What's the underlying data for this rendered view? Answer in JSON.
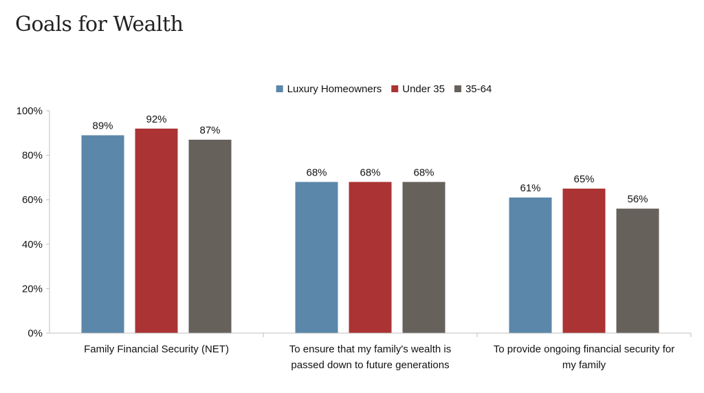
{
  "title": "Goals for Wealth",
  "chart_data": {
    "type": "bar",
    "title": "Goals for Wealth",
    "xlabel": "",
    "ylabel": "",
    "ylim": [
      0,
      100
    ],
    "y_ticks": [
      "0%",
      "20%",
      "40%",
      "60%",
      "80%",
      "100%"
    ],
    "y_tick_values": [
      0,
      20,
      40,
      60,
      80,
      100
    ],
    "grid": false,
    "legend_position": "top-center",
    "categories": [
      [
        "Family Financial Security (NET)"
      ],
      [
        "To ensure that my family's wealth is",
        "passed down to future generations"
      ],
      [
        "To provide ongoing financial security for",
        "my family"
      ]
    ],
    "series": [
      {
        "name": "Luxury Homeowners",
        "color": "#5b87aa",
        "values": [
          89,
          68,
          61
        ],
        "labels": [
          "89%",
          "68%",
          "61%"
        ]
      },
      {
        "name": "Under 35",
        "color": "#ab3333",
        "values": [
          92,
          68,
          65
        ],
        "labels": [
          "92%",
          "68%",
          "65%"
        ]
      },
      {
        "name": "35-64",
        "color": "#67615c",
        "values": [
          87,
          68,
          56
        ],
        "labels": [
          "87%",
          "68%",
          "56%"
        ]
      }
    ]
  }
}
